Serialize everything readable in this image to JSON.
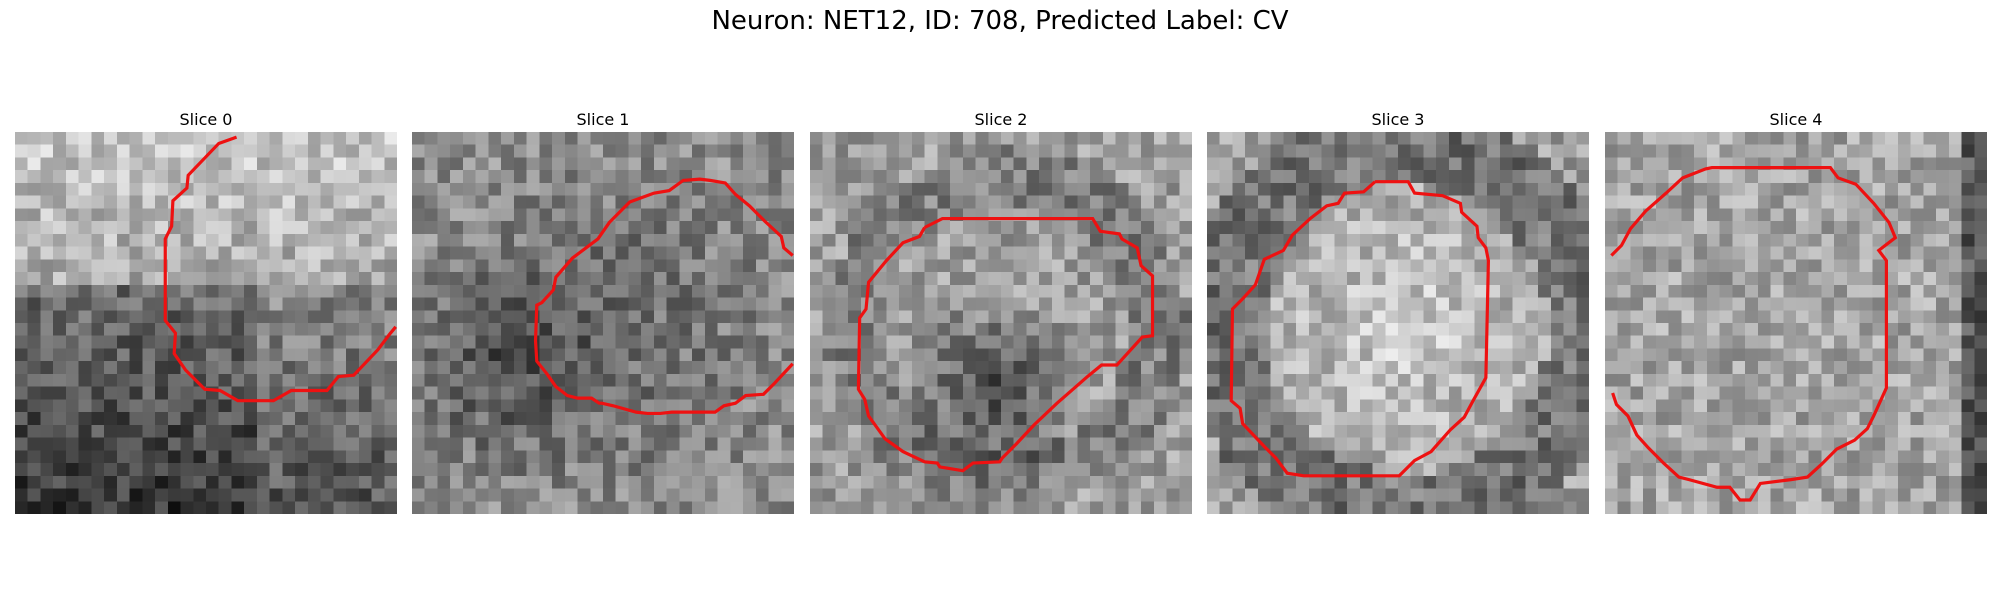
{
  "figure": {
    "title": "Neuron: NET12, ID: 708, Predicted Label: CV"
  },
  "colors": {
    "contour": "#ee1111",
    "background": "#ffffff"
  },
  "panels": [
    {
      "title": "Slice 0",
      "seed": 11,
      "pattern": "top-bright"
    },
    {
      "title": "Slice 1",
      "seed": 23,
      "pattern": "mixed-dark"
    },
    {
      "title": "Slice 2",
      "seed": 37,
      "pattern": "ring-dark-center"
    },
    {
      "title": "Slice 3",
      "seed": 41,
      "pattern": "bright-center"
    },
    {
      "title": "Slice 4",
      "seed": 59,
      "pattern": "uniform-light"
    }
  ]
}
